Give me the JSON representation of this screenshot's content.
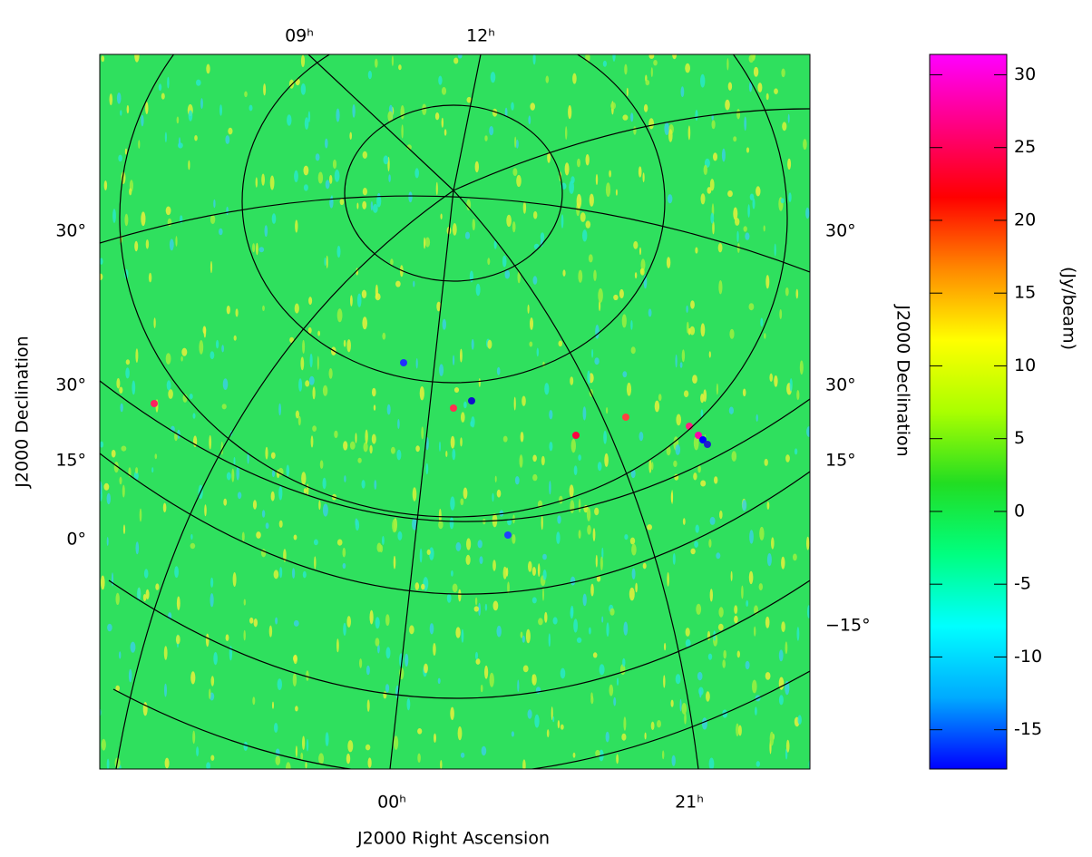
{
  "chart_data": {
    "type": "heatmap",
    "xlabel": "J2000 Right Ascension",
    "ylabel": "J2000 Declination",
    "y2label": "J2000 Declination",
    "top_labels": [
      "09ʰ",
      "12ʰ"
    ],
    "bottom_labels": [
      "00ʰ",
      "21ʰ"
    ],
    "left_labels": [
      "30°",
      "30°",
      "15°",
      "0°"
    ],
    "right_labels": [
      "30°",
      "30°",
      "15°",
      "−15°"
    ],
    "colorbar": {
      "label": "(Jy/beam)",
      "lim": [
        -17.7,
        31.4
      ],
      "ticks": [
        -15,
        -10,
        -5,
        0,
        5,
        10,
        15,
        20,
        25,
        30
      ],
      "colors": [
        "#0000ff",
        "#00aaff",
        "#00ffff",
        "#00ff80",
        "#22dd22",
        "#aaff00",
        "#ffff00",
        "#ff8800",
        "#ff0000",
        "#ff0080",
        "#ff00ff"
      ]
    }
  }
}
